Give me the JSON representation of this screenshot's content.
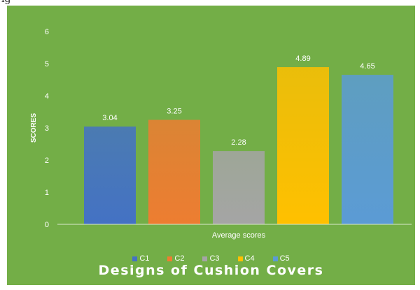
{
  "header_fragment": "ig",
  "chart_data": {
    "type": "bar",
    "title": "Designs of Cushion Covers",
    "xlabel": "Average scores",
    "ylabel": "SCORES",
    "ylim": [
      0,
      6
    ],
    "yticks": [
      0,
      1,
      2,
      3,
      4,
      5,
      6
    ],
    "grid": false,
    "legend_position": "bottom",
    "categories": [
      "Average scores"
    ],
    "series": [
      {
        "name": "C1",
        "values": [
          3.04
        ],
        "label": "3.04",
        "color": "#4472c4"
      },
      {
        "name": "C2",
        "values": [
          3.25
        ],
        "label": "3.25",
        "color": "#ed7d31"
      },
      {
        "name": "C3",
        "values": [
          2.28
        ],
        "label": "2.28",
        "color": "#a5a5a5"
      },
      {
        "name": "C4",
        "values": [
          4.89
        ],
        "label": "4.89",
        "color": "#ffc000"
      },
      {
        "name": "C5",
        "values": [
          4.65
        ],
        "label": "4.65",
        "color": "#5b9bd5"
      }
    ]
  },
  "colors": {
    "background": "#73ae47",
    "text": "#ffffff"
  }
}
